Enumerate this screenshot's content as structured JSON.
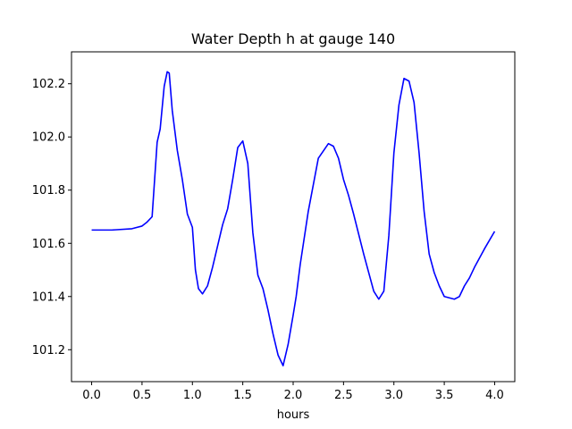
{
  "chart_data": {
    "type": "line",
    "title": "Water Depth h at gauge 140",
    "xlabel": "hours",
    "ylabel": "",
    "xlim": [
      -0.2,
      4.2
    ],
    "ylim": [
      101.08,
      102.32
    ],
    "xticks": [
      0.0,
      0.5,
      1.0,
      1.5,
      2.0,
      2.5,
      3.0,
      3.5,
      4.0
    ],
    "xtick_labels": [
      "0.0",
      "0.5",
      "1.0",
      "1.5",
      "2.0",
      "2.5",
      "3.0",
      "3.5",
      "4.0"
    ],
    "yticks": [
      101.2,
      101.4,
      101.6,
      101.8,
      102.0,
      102.2
    ],
    "ytick_labels": [
      "101.2",
      "101.4",
      "101.6",
      "101.8",
      "102.0",
      "102.2"
    ],
    "grid": false,
    "legend": "none",
    "series": [
      {
        "color": "#0000ff",
        "x": [
          0.0,
          0.2,
          0.4,
          0.5,
          0.55,
          0.6,
          0.65,
          0.68,
          0.72,
          0.75,
          0.77,
          0.8,
          0.85,
          0.9,
          0.95,
          1.0,
          1.03,
          1.06,
          1.1,
          1.15,
          1.2,
          1.3,
          1.35,
          1.4,
          1.45,
          1.5,
          1.55,
          1.6,
          1.65,
          1.7,
          1.75,
          1.8,
          1.85,
          1.9,
          1.95,
          2.0,
          2.03,
          2.07,
          2.15,
          2.25,
          2.35,
          2.4,
          2.45,
          2.5,
          2.55,
          2.6,
          2.7,
          2.8,
          2.85,
          2.9,
          2.95,
          3.0,
          3.05,
          3.1,
          3.15,
          3.2,
          3.25,
          3.3,
          3.35,
          3.4,
          3.45,
          3.5,
          3.55,
          3.6,
          3.65,
          3.7,
          3.75,
          3.8,
          3.9,
          4.0
        ],
        "y": [
          101.65,
          101.65,
          101.655,
          101.665,
          101.68,
          101.7,
          101.98,
          102.03,
          102.19,
          102.245,
          102.24,
          102.1,
          101.95,
          101.84,
          101.71,
          101.66,
          101.5,
          101.43,
          101.41,
          101.44,
          101.51,
          101.67,
          101.73,
          101.84,
          101.96,
          101.985,
          101.9,
          101.64,
          101.48,
          101.43,
          101.35,
          101.26,
          101.18,
          101.14,
          101.22,
          101.33,
          101.4,
          101.52,
          101.72,
          101.92,
          101.975,
          101.965,
          101.92,
          101.84,
          101.78,
          101.71,
          101.56,
          101.42,
          101.39,
          101.42,
          101.63,
          101.94,
          102.12,
          102.22,
          102.21,
          102.13,
          101.94,
          101.72,
          101.56,
          101.49,
          101.44,
          101.4,
          101.395,
          101.39,
          101.4,
          101.44,
          101.47,
          101.51,
          101.58,
          101.645
        ]
      }
    ]
  }
}
